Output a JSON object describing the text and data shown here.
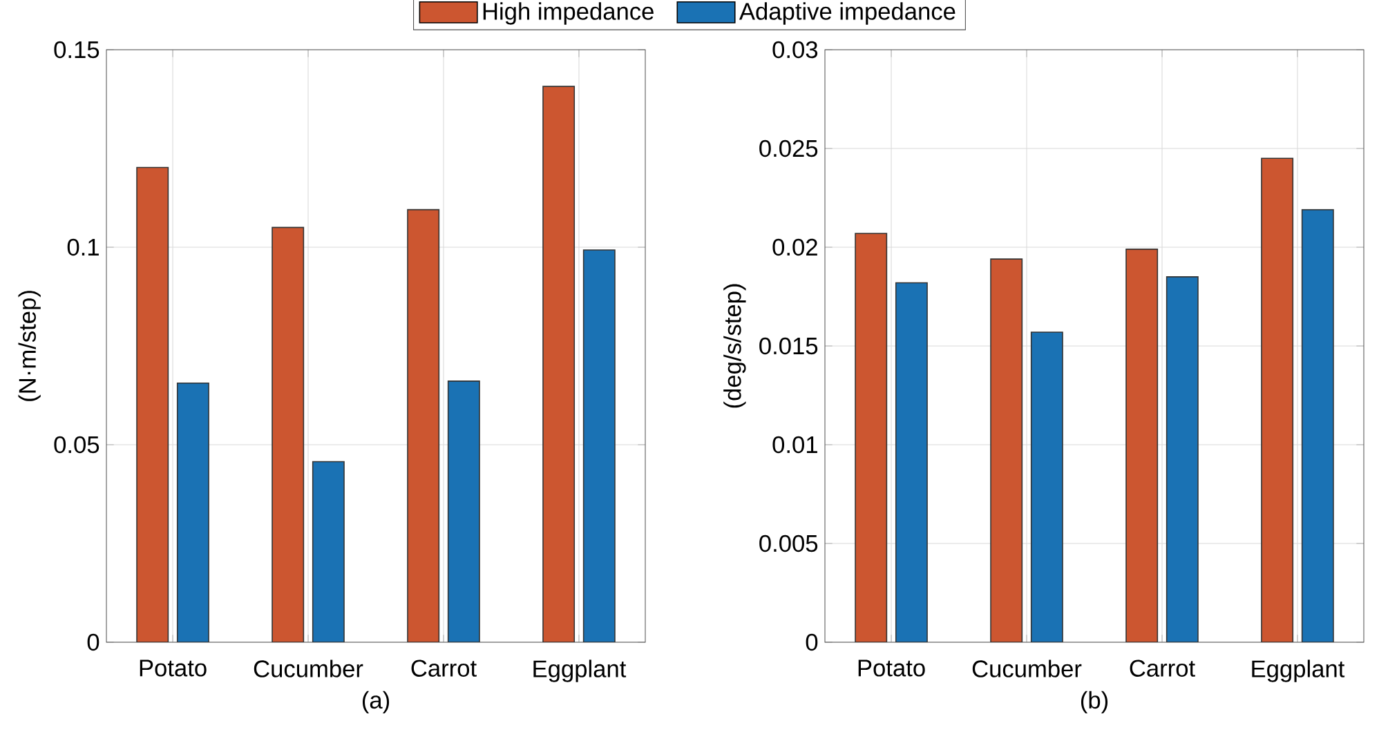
{
  "chart_data": [
    {
      "type": "bar",
      "xlabel": "(a)",
      "ylabel": "(N·m/step)",
      "categories": [
        "Potato",
        "Cucumber",
        "Carrot",
        "Eggplant"
      ],
      "series": [
        {
          "name": "High impedance",
          "color": "#cc5630",
          "values": [
            0.1202,
            0.105,
            0.1095,
            0.1407
          ]
        },
        {
          "name": "Adaptive impedance",
          "color": "#1a72b4",
          "values": [
            0.0656,
            0.0457,
            0.0661,
            0.0993
          ]
        }
      ],
      "ylim": [
        0,
        0.15
      ],
      "yticks": [
        0,
        0.05,
        0.1,
        0.15
      ],
      "grid": true,
      "legend": "top"
    },
    {
      "type": "bar",
      "xlabel": "(b)",
      "ylabel": "(deg/s/step)",
      "categories": [
        "Potato",
        "Cucumber",
        "Carrot",
        "Eggplant"
      ],
      "series": [
        {
          "color": "#cc5630",
          "values": [
            0.0207,
            0.0194,
            0.0199,
            0.0245
          ]
        },
        {
          "color": "#1a72b4",
          "values": [
            0.0182,
            0.0157,
            0.0185,
            0.0219
          ]
        }
      ],
      "ylim": [
        0,
        0.03
      ],
      "yticks": [
        0,
        0.005,
        0.01,
        0.015,
        0.02,
        0.025,
        0.03
      ],
      "grid": true
    }
  ]
}
